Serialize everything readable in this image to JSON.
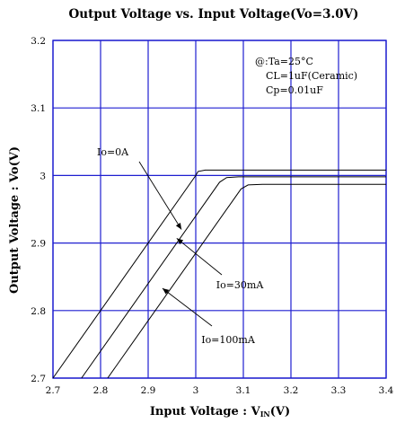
{
  "chart_data": {
    "type": "line",
    "title": "Output Voltage vs. Input Voltage(Vo=3.0V)",
    "xlabel": "Input Voltage : V",
    "xlabel_sub": "IN",
    "xlabel_unit": "(V)",
    "ylabel": "Output Voltage : Vo(V)",
    "xlim": [
      2.7,
      3.4
    ],
    "ylim": [
      2.7,
      3.2
    ],
    "xticks": [
      "2.7",
      "2.8",
      "2.9",
      "3",
      "3.1",
      "3.2",
      "3.3",
      "3.4"
    ],
    "yticks": [
      "3.2",
      "3.1",
      "3",
      "2.9",
      "2.8",
      "2.7"
    ],
    "grid": true,
    "conditions": [
      "@:Ta=25°C",
      "CL=1uF(Ceramic)",
      "Cp=0.01uF"
    ],
    "series": [
      {
        "name": "Io=0A",
        "points": [
          [
            2.7,
            2.7
          ],
          [
            3.0,
            3.0
          ],
          [
            3.005,
            3.006
          ],
          [
            3.02,
            3.008
          ],
          [
            3.4,
            3.008
          ]
        ]
      },
      {
        "name": "Io=30mA",
        "points": [
          [
            2.76,
            2.7
          ],
          [
            3.05,
            2.99
          ],
          [
            3.065,
            2.997
          ],
          [
            3.09,
            2.998
          ],
          [
            3.4,
            2.998
          ]
        ]
      },
      {
        "name": "Io=100mA",
        "points": [
          [
            2.815,
            2.7
          ],
          [
            3.095,
            2.98
          ],
          [
            3.11,
            2.986
          ],
          [
            3.14,
            2.987
          ],
          [
            3.4,
            2.987
          ]
        ]
      }
    ],
    "annotations": [
      {
        "text": "Io=0A",
        "target": [
          2.97,
          2.92
        ]
      },
      {
        "text": "Io=30mA",
        "target": [
          2.96,
          2.907
        ]
      },
      {
        "text": "Io=100mA",
        "target": [
          2.93,
          2.833
        ]
      }
    ]
  }
}
